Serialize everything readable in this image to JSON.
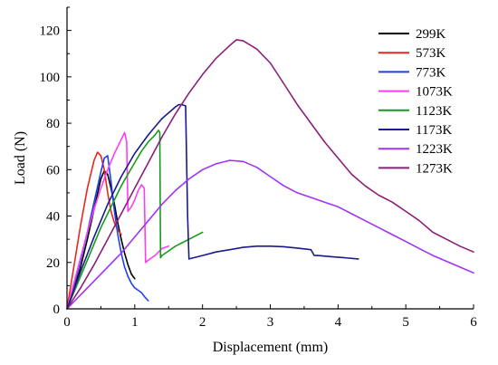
{
  "chart_data": {
    "type": "line",
    "title": "",
    "xlabel": "Displacement (mm)",
    "ylabel": "Load (N)",
    "xlim": [
      0,
      6
    ],
    "ylim": [
      0,
      130
    ],
    "xticks": [
      0,
      1,
      2,
      3,
      4,
      5,
      6
    ],
    "yticks": [
      0,
      20,
      40,
      60,
      80,
      100,
      120
    ],
    "grid": false,
    "legend_position": "top-right",
    "series": [
      {
        "name": "299K",
        "color": "#000000",
        "x": [
          0,
          0.1,
          0.2,
          0.3,
          0.4,
          0.5,
          0.55,
          0.6,
          0.65,
          0.7,
          0.75,
          0.8,
          0.85,
          0.9,
          0.95,
          1.0
        ],
        "y": [
          0,
          8,
          18,
          30,
          43,
          56,
          59.5,
          58,
          52,
          45,
          37,
          30,
          24,
          19,
          15,
          13
        ]
      },
      {
        "name": "573K",
        "color": "#e8281e",
        "x": [
          0,
          0.1,
          0.2,
          0.3,
          0.4,
          0.45,
          0.5,
          0.55,
          0.6,
          0.65,
          0.7,
          0.75,
          0.8
        ],
        "y": [
          0,
          18,
          36,
          52,
          64,
          67.5,
          66,
          60,
          50,
          42,
          37,
          34,
          32
        ]
      },
      {
        "name": "773K",
        "color": "#1c3ff0",
        "x": [
          0,
          0.1,
          0.2,
          0.3,
          0.4,
          0.5,
          0.55,
          0.6,
          0.65,
          0.7,
          0.75,
          0.8,
          0.85,
          0.9,
          0.95,
          1.0,
          1.05,
          1.1,
          1.15,
          1.2
        ],
        "y": [
          0,
          10,
          21,
          33,
          46,
          59,
          65,
          66,
          55,
          42,
          32,
          24,
          18,
          14,
          11,
          9,
          8,
          7,
          5,
          3.5
        ]
      },
      {
        "name": "1073K",
        "color": "#ff3cf5",
        "x": [
          0,
          0.1,
          0.2,
          0.3,
          0.4,
          0.5,
          0.6,
          0.7,
          0.8,
          0.85,
          0.88,
          0.9,
          0.95,
          1.0,
          1.05,
          1.1,
          1.14,
          1.16,
          1.18,
          1.2,
          1.3,
          1.4,
          1.5
        ],
        "y": [
          0,
          11,
          22,
          33,
          43,
          52,
          60,
          67,
          73,
          76,
          72,
          42,
          44,
          47,
          51,
          53.5,
          52,
          20,
          20.5,
          21,
          23,
          26,
          27
        ]
      },
      {
        "name": "1123K",
        "color": "#179b1a",
        "x": [
          0,
          0.1,
          0.2,
          0.3,
          0.4,
          0.5,
          0.6,
          0.7,
          0.8,
          0.9,
          1.0,
          1.1,
          1.2,
          1.3,
          1.35,
          1.37,
          1.38,
          1.4,
          1.5,
          1.6,
          1.7,
          1.8,
          1.9,
          2.0
        ],
        "y": [
          0,
          7,
          14,
          21,
          28,
          35,
          41,
          47,
          53,
          58,
          63,
          68,
          72,
          75,
          77,
          76,
          22,
          23,
          25,
          27,
          28.5,
          30,
          31.5,
          33
        ]
      },
      {
        "name": "1173K",
        "color": "#1a1a8c",
        "x": [
          0,
          0.2,
          0.4,
          0.6,
          0.8,
          1.0,
          1.2,
          1.4,
          1.6,
          1.65,
          1.7,
          1.75,
          1.78,
          1.8,
          2.0,
          2.2,
          2.4,
          2.6,
          2.8,
          3.0,
          3.2,
          3.4,
          3.6,
          3.65,
          3.7,
          3.9,
          4.1,
          4.3
        ],
        "y": [
          0,
          16,
          31,
          45,
          57,
          67,
          75,
          82,
          87,
          88,
          88,
          87.5,
          40,
          21.5,
          23,
          24.5,
          25.5,
          26.5,
          27,
          27,
          26.8,
          26.2,
          25.5,
          23,
          23,
          22.5,
          22,
          21.5
        ]
      },
      {
        "name": "1223K",
        "color": "#a233f5",
        "x": [
          0,
          0.2,
          0.4,
          0.6,
          0.8,
          1.0,
          1.2,
          1.4,
          1.6,
          1.8,
          2.0,
          2.2,
          2.4,
          2.6,
          2.8,
          3.0,
          3.2,
          3.4,
          3.6,
          3.8,
          4.0,
          4.2,
          4.4,
          4.6,
          4.8,
          5.0,
          5.2,
          5.4,
          5.6,
          5.8,
          6.0
        ],
        "y": [
          0,
          6,
          12,
          18,
          24,
          31,
          38,
          45,
          51,
          56,
          60,
          62.5,
          64,
          63.5,
          61,
          57,
          53,
          50,
          48,
          46,
          44,
          41,
          38,
          35,
          32,
          29,
          26,
          23,
          20.5,
          18,
          15.5
        ]
      },
      {
        "name": "1273K",
        "color": "#8b1f78",
        "x": [
          0,
          0.2,
          0.4,
          0.6,
          0.8,
          1.0,
          1.2,
          1.4,
          1.6,
          1.8,
          2.0,
          2.2,
          2.4,
          2.5,
          2.6,
          2.8,
          3.0,
          3.2,
          3.4,
          3.6,
          3.8,
          4.0,
          4.2,
          4.4,
          4.6,
          4.8,
          5.0,
          5.2,
          5.4,
          5.6,
          5.8,
          6.0
        ],
        "y": [
          0,
          9,
          19,
          30,
          41,
          52,
          63,
          74,
          84,
          93,
          101,
          108,
          113.5,
          116,
          115.5,
          112,
          106,
          97,
          88,
          80,
          72,
          65,
          58,
          53,
          49,
          46,
          42,
          38,
          33,
          30,
          27,
          24.5
        ]
      }
    ]
  }
}
